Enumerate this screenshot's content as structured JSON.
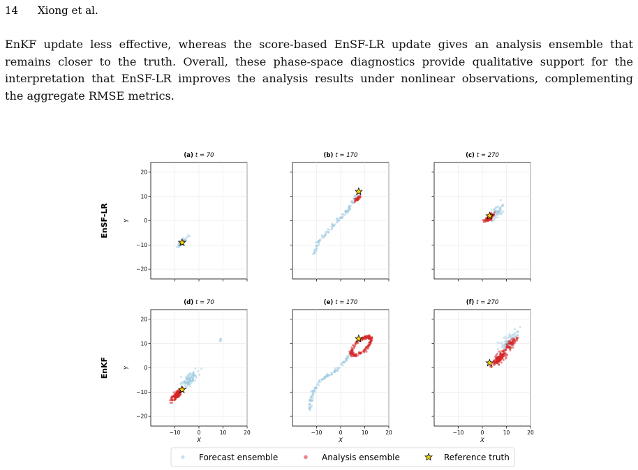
{
  "running_head": {
    "page_number": "14",
    "authors": "Xiong et al."
  },
  "paragraph": {
    "lines": [
      "EnKF update less effective, whereas the score-based EnSF-LR update gives an analysis ensemble that",
      "remains closer to the truth. Overall, these phase-space diagnostics provide qualitative support for the",
      "interpretation that EnSF-LR improves the analysis results under nonlinear observations, complementing",
      "the aggregate RMSE metrics."
    ]
  },
  "figure": {
    "row_labels": [
      "EnSF-LR",
      "EnKF"
    ],
    "panels": [
      {
        "label": "(a)",
        "time": "t = 70"
      },
      {
        "label": "(b)",
        "time": "t = 170"
      },
      {
        "label": "(c)",
        "time": "t = 270"
      },
      {
        "label": "(d)",
        "time": "t = 70"
      },
      {
        "label": "(e)",
        "time": "t = 170"
      },
      {
        "label": "(f)",
        "time": "t = 270"
      }
    ],
    "xlabel": "X",
    "ylabel": "Y",
    "xticks": [
      -10,
      0,
      10,
      20
    ],
    "yticks": [
      20,
      10,
      0,
      -10,
      -20
    ],
    "legend": [
      "Forecast ensemble",
      "Analysis ensemble",
      "Reference truth"
    ],
    "colors": {
      "forecast": "#9ecae1",
      "analysis": "#d62728",
      "truth_fill": "#ffd700",
      "truth_edge": "#000000"
    }
  },
  "chart_data": {
    "type": "scatter",
    "xlim": [
      -20,
      20
    ],
    "ylim": [
      -24,
      24
    ],
    "xlabel": "X",
    "ylabel": "Y",
    "grid": true,
    "legend_placement": "bottom-center",
    "series": [
      {
        "name": "Forecast ensemble"
      },
      {
        "name": "Analysis ensemble"
      },
      {
        "name": "Reference truth"
      }
    ],
    "panels": [
      {
        "title": "(a) t = 70",
        "truth": [
          -7,
          -9
        ],
        "forecast": {
          "clusters": [
            {
              "x": -7,
              "y": -9,
              "r": 2.5,
              "count": 35
            },
            {
              "x": -5,
              "y": -7,
              "r": 1.5,
              "count": 8
            }
          ]
        },
        "analysis": {
          "clusters": [
            {
              "x": -7,
              "y": -9,
              "r": 0.8,
              "count": 25
            }
          ]
        }
      },
      {
        "title": "(b) t = 170",
        "truth": [
          7.5,
          12
        ],
        "forecast": {
          "paths": [
            [
              [
                -11,
                -14
              ],
              [
                -10,
                -10
              ],
              [
                -8,
                -7
              ],
              [
                -5,
                -4
              ],
              [
                -2,
                -1
              ],
              [
                1,
                2
              ],
              [
                4,
                6
              ],
              [
                7,
                11
              ]
            ]
          ],
          "count": 120
        },
        "analysis": {
          "clusters": [
            {
              "x": 7,
              "y": 9,
              "r": 1.2,
              "count": 45
            }
          ]
        }
      },
      {
        "title": "(c) t = 270",
        "truth": [
          3,
          2
        ],
        "forecast": {
          "clusters": [
            {
              "x": 6,
              "y": 3.5,
              "r": 4,
              "count": 60
            }
          ]
        },
        "analysis": {
          "clusters": [
            {
              "x": 3,
              "y": 1.5,
              "r": 2.2,
              "count": 140
            }
          ]
        }
      },
      {
        "title": "(d) t = 70",
        "truth": [
          -7,
          -9
        ],
        "forecast": {
          "clusters": [
            {
              "x": -4,
              "y": -5,
              "r": 4,
              "count": 110
            },
            {
              "x": 9,
              "y": 11.5,
              "r": 1.2,
              "count": 5
            }
          ]
        },
        "analysis": {
          "clusters": [
            {
              "x": -9,
              "y": -11,
              "r": 2.8,
              "count": 160
            }
          ]
        }
      },
      {
        "title": "(e) t = 170",
        "truth": [
          7.5,
          12
        ],
        "forecast": {
          "paths": [
            [
              [
                -13,
                -17
              ],
              [
                -12,
                -11
              ],
              [
                -9,
                -6
              ],
              [
                -5,
                -3
              ],
              [
                -2,
                -1
              ],
              [
                2,
                3
              ],
              [
                5,
                7
              ]
            ]
          ],
          "count": 130
        },
        "analysis": {
          "loop": {
            "cx": 8.5,
            "cy": 9,
            "rx": 4,
            "ry": 5
          },
          "count": 170
        }
      },
      {
        "title": "(f) t = 270",
        "truth": [
          3,
          2
        ],
        "forecast": {
          "clusters": [
            {
              "x": 11,
              "y": 11,
              "r": 5,
              "count": 80
            }
          ]
        },
        "analysis": {
          "clusters": [
            {
              "x": 7,
              "y": 4,
              "r": 3.5,
              "count": 160
            },
            {
              "x": 12,
              "y": 10,
              "r": 3,
              "count": 60
            }
          ]
        }
      }
    ]
  }
}
